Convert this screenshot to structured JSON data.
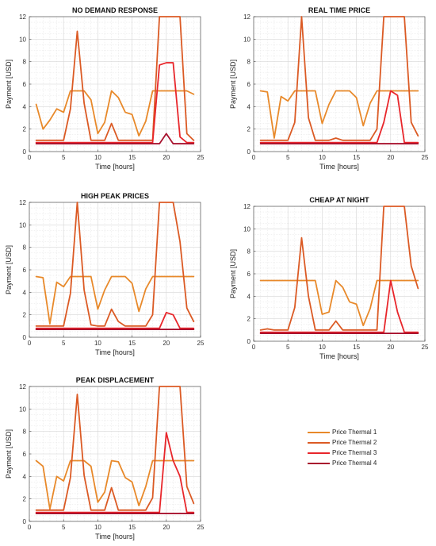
{
  "legend": {
    "placement": "bottom-right",
    "items": [
      {
        "label": "Price Thermal 1",
        "color": "#e8892a"
      },
      {
        "label": "Price Thermal 2",
        "color": "#db5a24"
      },
      {
        "label": "Price Thermal 3",
        "color": "#e8262b"
      },
      {
        "label": "Price Thermal 4",
        "color": "#a8122e"
      }
    ]
  },
  "chart_data": [
    {
      "type": "line",
      "title": "NO DEMAND RESPONSE",
      "xlabel": "Time [hours]",
      "ylabel": "Payment [USD]",
      "xlim": [
        0,
        25
      ],
      "ylim": [
        0,
        12
      ],
      "xticks": [
        "0",
        "5",
        "10",
        "15",
        "20",
        "25"
      ],
      "yticks": [
        "0",
        "2",
        "4",
        "6",
        "8",
        "10",
        "12"
      ],
      "grid": true,
      "x": [
        1,
        2,
        3,
        4,
        5,
        6,
        7,
        8,
        9,
        10,
        11,
        12,
        13,
        14,
        15,
        16,
        17,
        18,
        19,
        20,
        21,
        22,
        23,
        24
      ],
      "series": [
        {
          "name": "Price Thermal 1",
          "values": [
            4.2,
            2.0,
            2.8,
            3.8,
            3.5,
            5.4,
            5.4,
            5.4,
            4.6,
            1.6,
            2.6,
            5.4,
            4.8,
            3.5,
            3.3,
            1.4,
            2.7,
            5.4,
            5.4,
            5.4,
            5.4,
            5.4,
            5.4,
            5.1
          ]
        },
        {
          "name": "Price Thermal 2",
          "values": [
            1.0,
            1.0,
            1.0,
            1.0,
            1.0,
            3.8,
            10.7,
            4.3,
            1.0,
            1.0,
            1.0,
            2.5,
            1.0,
            1.0,
            1.0,
            1.0,
            1.0,
            1.0,
            12.0,
            12.0,
            12.0,
            12.0,
            1.6,
            1.0
          ]
        },
        {
          "name": "Price Thermal 3",
          "values": [
            0.8,
            0.8,
            0.8,
            0.8,
            0.8,
            0.8,
            0.8,
            0.8,
            0.8,
            0.8,
            0.8,
            0.8,
            0.8,
            0.8,
            0.8,
            0.8,
            0.8,
            0.8,
            7.7,
            7.9,
            7.9,
            1.3,
            0.8,
            0.8
          ]
        },
        {
          "name": "Price Thermal 4",
          "values": [
            0.7,
            0.7,
            0.7,
            0.7,
            0.7,
            0.7,
            0.7,
            0.7,
            0.7,
            0.7,
            0.7,
            0.7,
            0.7,
            0.7,
            0.7,
            0.7,
            0.7,
            0.7,
            0.7,
            1.6,
            0.7,
            0.7,
            0.7,
            0.7
          ]
        }
      ]
    },
    {
      "type": "line",
      "title": "REAL TIME PRICE",
      "xlabel": "Time [hours]",
      "ylabel": "Payment [USD]",
      "xlim": [
        0,
        25
      ],
      "ylim": [
        0,
        12
      ],
      "xticks": [
        "0",
        "5",
        "10",
        "15",
        "20",
        "25"
      ],
      "yticks": [
        "0",
        "2",
        "4",
        "6",
        "8",
        "10",
        "12"
      ],
      "grid": true,
      "x": [
        1,
        2,
        3,
        4,
        5,
        6,
        7,
        8,
        9,
        10,
        11,
        12,
        13,
        14,
        15,
        16,
        17,
        18,
        19,
        20,
        21,
        22,
        23,
        24
      ],
      "series": [
        {
          "name": "Price Thermal 1",
          "values": [
            5.4,
            5.3,
            1.2,
            4.9,
            4.5,
            5.4,
            5.4,
            5.4,
            5.4,
            2.5,
            4.2,
            5.4,
            5.4,
            5.4,
            4.8,
            2.3,
            4.3,
            5.4,
            5.4,
            5.4,
            5.4,
            5.4,
            5.4,
            5.4
          ]
        },
        {
          "name": "Price Thermal 2",
          "values": [
            1.0,
            1.0,
            1.0,
            1.0,
            1.0,
            2.6,
            12.0,
            3.0,
            1.0,
            1.0,
            1.0,
            1.2,
            1.0,
            1.0,
            1.0,
            1.0,
            1.0,
            2.0,
            12.0,
            12.0,
            12.0,
            12.0,
            2.6,
            1.4
          ]
        },
        {
          "name": "Price Thermal 3",
          "values": [
            0.8,
            0.8,
            0.8,
            0.8,
            0.8,
            0.8,
            0.8,
            0.8,
            0.8,
            0.8,
            0.8,
            0.8,
            0.8,
            0.8,
            0.8,
            0.8,
            0.8,
            0.8,
            2.6,
            5.4,
            5.0,
            0.8,
            0.8,
            0.8
          ]
        },
        {
          "name": "Price Thermal 4",
          "values": [
            0.7,
            0.7,
            0.7,
            0.7,
            0.7,
            0.7,
            0.7,
            0.7,
            0.7,
            0.7,
            0.7,
            0.7,
            0.7,
            0.7,
            0.7,
            0.7,
            0.7,
            0.7,
            0.7,
            0.7,
            0.7,
            0.7,
            0.7,
            0.7
          ]
        }
      ]
    },
    {
      "type": "line",
      "title": "HIGH PEAK PRICES",
      "xlabel": "Time [hours]",
      "ylabel": "Payment [USD]",
      "xlim": [
        0,
        25
      ],
      "ylim": [
        0,
        12
      ],
      "xticks": [
        "0",
        "5",
        "10",
        "15",
        "20",
        "25"
      ],
      "yticks": [
        "0",
        "2",
        "4",
        "6",
        "8",
        "10",
        "12"
      ],
      "grid": true,
      "x": [
        1,
        2,
        3,
        4,
        5,
        6,
        7,
        8,
        9,
        10,
        11,
        12,
        13,
        14,
        15,
        16,
        17,
        18,
        19,
        20,
        21,
        22,
        23,
        24
      ],
      "series": [
        {
          "name": "Price Thermal 1",
          "values": [
            5.4,
            5.3,
            1.2,
            4.9,
            4.5,
            5.4,
            5.4,
            5.4,
            5.4,
            2.5,
            4.2,
            5.4,
            5.4,
            5.4,
            4.8,
            2.3,
            4.3,
            5.4,
            5.4,
            5.4,
            5.4,
            5.4,
            5.4,
            5.4
          ]
        },
        {
          "name": "Price Thermal 2",
          "values": [
            1.0,
            1.0,
            1.0,
            1.0,
            1.0,
            3.9,
            12.0,
            4.2,
            1.1,
            1.0,
            1.0,
            2.5,
            1.4,
            1.0,
            1.0,
            1.0,
            1.0,
            2.0,
            12.0,
            12.0,
            12.0,
            8.5,
            2.6,
            1.4
          ]
        },
        {
          "name": "Price Thermal 3",
          "values": [
            0.8,
            0.8,
            0.8,
            0.8,
            0.8,
            0.8,
            0.8,
            0.8,
            0.8,
            0.8,
            0.8,
            0.8,
            0.8,
            0.8,
            0.8,
            0.8,
            0.8,
            0.8,
            0.8,
            2.2,
            2.0,
            0.8,
            0.8,
            0.8
          ]
        },
        {
          "name": "Price Thermal 4",
          "values": [
            0.7,
            0.7,
            0.7,
            0.7,
            0.7,
            0.7,
            0.7,
            0.7,
            0.7,
            0.7,
            0.7,
            0.7,
            0.7,
            0.7,
            0.7,
            0.7,
            0.7,
            0.7,
            0.7,
            0.7,
            0.7,
            0.7,
            0.7,
            0.7
          ]
        }
      ]
    },
    {
      "type": "line",
      "title": "CHEAP AT NIGHT",
      "xlabel": "Time [hours]",
      "ylabel": "Payment [USD]",
      "xlim": [
        0,
        25
      ],
      "ylim": [
        0,
        12
      ],
      "xticks": [
        "0",
        "5",
        "10",
        "15",
        "20",
        "25"
      ],
      "yticks": [
        "0",
        "2",
        "4",
        "6",
        "8",
        "10",
        "12"
      ],
      "grid": true,
      "x": [
        1,
        2,
        3,
        4,
        5,
        6,
        7,
        8,
        9,
        10,
        11,
        12,
        13,
        14,
        15,
        16,
        17,
        18,
        19,
        20,
        21,
        22,
        23,
        24
      ],
      "series": [
        {
          "name": "Price Thermal 1",
          "values": [
            5.4,
            5.4,
            5.4,
            5.4,
            5.4,
            5.4,
            5.4,
            5.4,
            5.4,
            2.4,
            2.6,
            5.4,
            4.8,
            3.5,
            3.3,
            1.4,
            2.9,
            5.4,
            5.4,
            5.4,
            5.4,
            5.4,
            5.4,
            5.4
          ]
        },
        {
          "name": "Price Thermal 2",
          "values": [
            1.0,
            1.1,
            1.0,
            1.0,
            1.0,
            3.0,
            9.2,
            4.0,
            1.0,
            1.0,
            1.0,
            1.8,
            1.0,
            1.0,
            1.0,
            1.0,
            1.0,
            1.0,
            12.0,
            12.0,
            12.0,
            12.0,
            6.7,
            4.7
          ]
        },
        {
          "name": "Price Thermal 3",
          "values": [
            0.8,
            0.8,
            0.8,
            0.8,
            0.8,
            0.8,
            0.8,
            0.8,
            0.8,
            0.8,
            0.8,
            0.8,
            0.8,
            0.8,
            0.8,
            0.8,
            0.8,
            0.8,
            0.8,
            5.4,
            2.6,
            0.8,
            0.8,
            0.8
          ]
        },
        {
          "name": "Price Thermal 4",
          "values": [
            0.7,
            0.7,
            0.7,
            0.7,
            0.7,
            0.7,
            0.7,
            0.7,
            0.7,
            0.7,
            0.7,
            0.7,
            0.7,
            0.7,
            0.7,
            0.7,
            0.7,
            0.7,
            0.7,
            0.7,
            0.7,
            0.7,
            0.7,
            0.7
          ]
        }
      ]
    },
    {
      "type": "line",
      "title": "PEAK DISPLACEMENT",
      "xlabel": "Time [hours]",
      "ylabel": "Payment [USD]",
      "xlim": [
        0,
        25
      ],
      "ylim": [
        0,
        12
      ],
      "xticks": [
        "0",
        "5",
        "10",
        "15",
        "20",
        "25"
      ],
      "yticks": [
        "0",
        "2",
        "4",
        "6",
        "8",
        "10",
        "12"
      ],
      "grid": true,
      "x": [
        1,
        2,
        3,
        4,
        5,
        6,
        7,
        8,
        9,
        10,
        11,
        12,
        13,
        14,
        15,
        16,
        17,
        18,
        19,
        20,
        21,
        22,
        23,
        24
      ],
      "series": [
        {
          "name": "Price Thermal 1",
          "values": [
            5.4,
            4.9,
            1.1,
            4.0,
            3.6,
            5.4,
            5.4,
            5.4,
            4.9,
            1.7,
            2.6,
            5.4,
            5.3,
            3.9,
            3.5,
            1.4,
            3.1,
            5.4,
            5.4,
            5.4,
            5.4,
            5.4,
            5.4,
            5.4
          ]
        },
        {
          "name": "Price Thermal 2",
          "values": [
            1.0,
            1.0,
            1.0,
            1.0,
            1.0,
            3.9,
            11.3,
            4.1,
            1.0,
            1.0,
            1.0,
            3.0,
            1.0,
            1.0,
            1.0,
            1.0,
            1.0,
            2.1,
            12.0,
            12.0,
            12.0,
            12.0,
            3.1,
            1.6
          ]
        },
        {
          "name": "Price Thermal 3",
          "values": [
            0.8,
            0.8,
            0.8,
            0.8,
            0.8,
            0.8,
            0.8,
            0.8,
            0.8,
            0.8,
            0.8,
            0.8,
            0.8,
            0.8,
            0.8,
            0.8,
            0.8,
            0.8,
            0.8,
            7.9,
            5.4,
            4.0,
            0.8,
            0.8
          ]
        },
        {
          "name": "Price Thermal 4",
          "values": [
            0.7,
            0.7,
            0.7,
            0.7,
            0.7,
            0.7,
            0.7,
            0.7,
            0.7,
            0.7,
            0.7,
            0.7,
            0.7,
            0.7,
            0.7,
            0.7,
            0.7,
            0.7,
            0.7,
            0.7,
            0.7,
            0.7,
            0.7,
            0.7
          ]
        }
      ]
    }
  ]
}
